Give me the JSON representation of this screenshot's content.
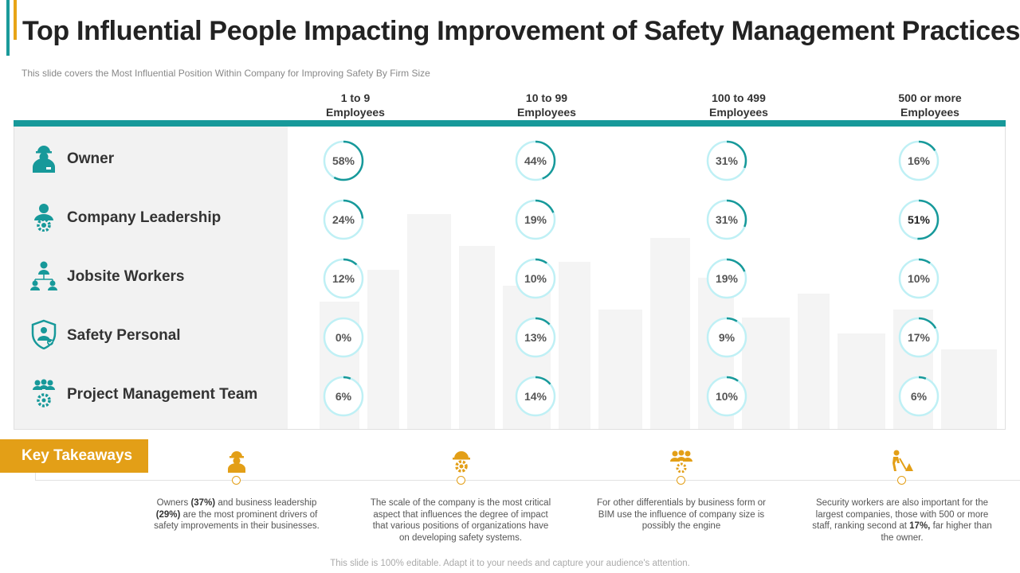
{
  "title": "Top Influential People Impacting Improvement of Safety Management Practices",
  "subtitle": "This slide covers the Most Influential Position Within Company for Improving  Safety By Firm Size",
  "colors": {
    "teal": "#17999a",
    "ring_track": "#bff0f5",
    "ring_arc": "#17999a",
    "orange": "#e39f17",
    "panel": "#f2f2f2"
  },
  "columns": [
    {
      "line1": "1 to 9",
      "line2": "Employees"
    },
    {
      "line1": "10 to 99",
      "line2": "Employees"
    },
    {
      "line1": "100 to 499",
      "line2": "Employees"
    },
    {
      "line1": "500 or more",
      "line2": "Employees"
    }
  ],
  "rows": [
    {
      "label": "Owner",
      "icon": "worker-helmet-icon",
      "values": [
        58,
        44,
        31,
        16
      ],
      "labels": [
        "58%",
        "44%",
        "31%",
        "16%"
      ]
    },
    {
      "label": "Company Leadership",
      "icon": "leader-gear-icon",
      "values": [
        24,
        19,
        31,
        51
      ],
      "labels": [
        "24%",
        "19%",
        "31%",
        "51%"
      ]
    },
    {
      "label": "Jobsite Workers",
      "icon": "org-hierarchy-icon",
      "values": [
        12,
        10,
        19,
        10
      ],
      "labels": [
        "12%",
        "10%",
        "19%",
        "10%"
      ]
    },
    {
      "label": "Safety Personal",
      "icon": "shield-person-icon",
      "values": [
        0,
        13,
        9,
        17
      ],
      "labels": [
        "0%",
        "13%",
        "9%",
        "17%"
      ]
    },
    {
      "label": "Project Management Team",
      "icon": "team-gear-icon",
      "values": [
        6,
        14,
        10,
        6
      ],
      "labels": [
        "6%",
        "14%",
        "10%",
        "6%"
      ]
    }
  ],
  "key_takeaways": {
    "label": "Key Takeaways",
    "items": [
      {
        "icon": "worker-helmet-icon",
        "pre": "Owners ",
        "b1": "(37%)",
        "mid": " and business leadership ",
        "b2": "(29%)",
        "post": " are the most prominent drivers of safety improvements in their businesses."
      },
      {
        "icon": "helmet-gear-icon",
        "pre": "The scale of the company is the most critical aspect that influences the degree of impact that various positions of organizations have on developing safety systems.",
        "b1": "",
        "mid": "",
        "b2": "",
        "post": ""
      },
      {
        "icon": "team-group-icon",
        "pre": "For other differentials by business form or BIM  use the influence of company size is possibly the engine",
        "b1": "",
        "mid": "",
        "b2": "",
        "post": ""
      },
      {
        "icon": "construction-worker-icon",
        "pre": "Security workers are also important for the largest companies, those with 500 or more staff, ranking second at ",
        "b1": "17%,",
        "mid": " far higher than the owner.",
        "b2": "",
        "post": ""
      }
    ]
  },
  "footer": "This slide is 100% editable. Adapt it to your needs and capture your audience's attention."
}
